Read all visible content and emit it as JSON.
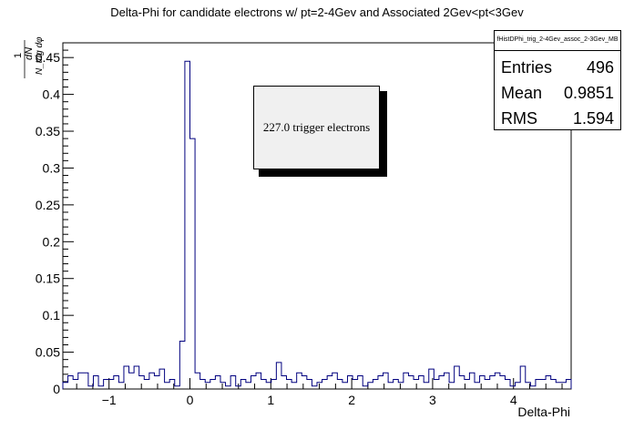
{
  "chart_data": {
    "type": "histogram",
    "title": "Delta-Phi for candidate electrons w/ pt=2-4Gev and Associated 2Gev<pt<3Gev",
    "xlabel": "Delta-Phi",
    "ylabel_prefix": "1",
    "ylabel_numerator": "dN",
    "ylabel_denominator": "N_trig dφ",
    "xlim": [
      -1.5708,
      4.7124
    ],
    "ylim": [
      0,
      0.47
    ],
    "xticks": [
      -1,
      0,
      1,
      2,
      3,
      4
    ],
    "yticks": [
      0,
      0.05,
      0.1,
      0.15,
      0.2,
      0.25,
      0.3,
      0.35,
      0.4,
      0.45
    ],
    "line_color": "#00007f",
    "bin_values": [
      0.009,
      0.018,
      0.013,
      0.022,
      0.022,
      0.004,
      0.018,
      0.004,
      0.013,
      0.013,
      0.018,
      0.009,
      0.031,
      0.022,
      0.031,
      0.018,
      0.013,
      0.022,
      0.018,
      0.027,
      0.009,
      0.013,
      0.004,
      0.065,
      0.445,
      0.34,
      0.022,
      0.013,
      0.009,
      0.013,
      0.018,
      0.009,
      0.004,
      0.018,
      0.004,
      0.013,
      0.009,
      0.018,
      0.022,
      0.013,
      0.009,
      0.013,
      0.036,
      0.018,
      0.013,
      0.009,
      0.022,
      0.018,
      0.013,
      0.004,
      0.009,
      0.013,
      0.018,
      0.022,
      0.013,
      0.009,
      0.018,
      0.013,
      0.018,
      0.004,
      0.009,
      0.013,
      0.018,
      0.022,
      0.009,
      0.013,
      0.009,
      0.022,
      0.018,
      0.013,
      0.018,
      0.009,
      0.027,
      0.013,
      0.018,
      0.022,
      0.009,
      0.031,
      0.018,
      0.013,
      0.022,
      0.009,
      0.018,
      0.013,
      0.018,
      0.022,
      0.018,
      0.013,
      0.004,
      0.009,
      0.031,
      0.009,
      0.004,
      0.013,
      0.013,
      0.018,
      0.013,
      0.009,
      0.009,
      0.013
    ]
  },
  "stats_box": {
    "name": "fHistDPhi_trig_2-4Gev_assoc_2-3Gev_MB",
    "rows": [
      {
        "label": "Entries",
        "value": "496"
      },
      {
        "label": "Mean",
        "value": "0.9851"
      },
      {
        "label": "RMS",
        "value": "1.594"
      }
    ]
  },
  "annotation": "227.0 trigger electrons"
}
